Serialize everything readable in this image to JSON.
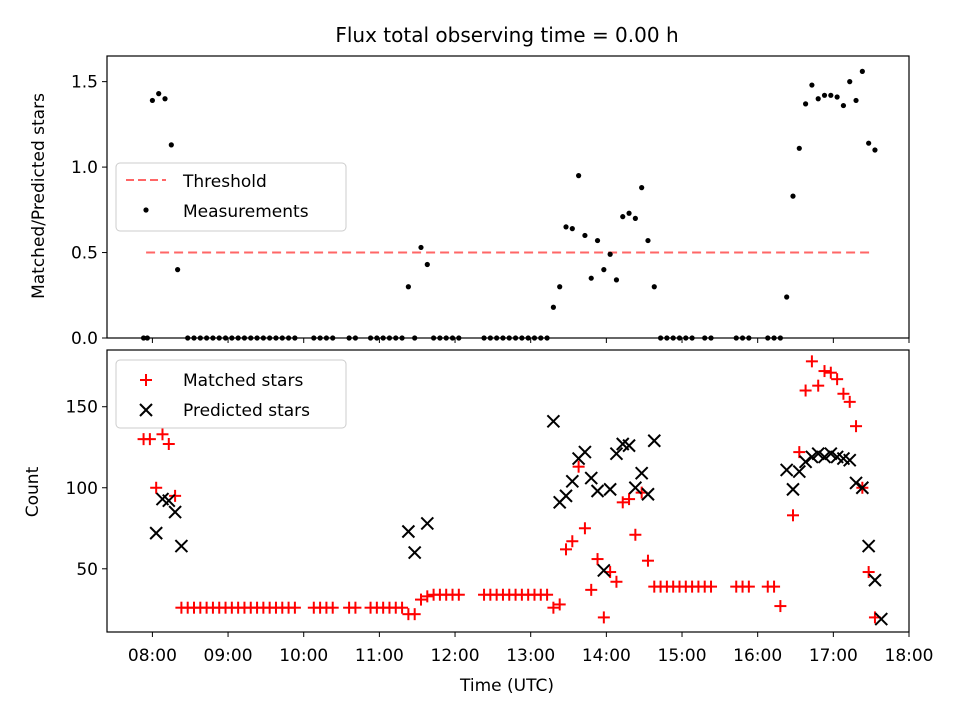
{
  "chart_data": [
    {
      "type": "scatter",
      "title": "Flux total observing time = 0.00 h",
      "xlabel": "",
      "ylabel": "Matched/Predicted stars",
      "xlim": [
        "07:24",
        "18:00"
      ],
      "ylim": [
        0,
        1.65
      ],
      "yticks": [
        0,
        0.5,
        1.0,
        1.5
      ],
      "ytick_labels": [
        "0.0",
        "0.5",
        "1.0",
        "1.5"
      ],
      "legend_position": "center-left",
      "threshold": {
        "name": "Threshold",
        "y": 0.5,
        "x_range": [
          "07:55",
          "17:32"
        ],
        "color": "#ff6666",
        "style": "dashed"
      },
      "series": [
        {
          "name": "Measurements",
          "color": "#000000",
          "marker": "dot",
          "points": [
            [
              "07:53",
              0
            ],
            [
              "07:56",
              0
            ],
            [
              "08:00",
              1.39
            ],
            [
              "08:05",
              1.43
            ],
            [
              "08:10",
              1.4
            ],
            [
              "08:15",
              1.13
            ],
            [
              "08:20",
              0.4
            ],
            [
              "08:28",
              0
            ],
            [
              "08:33",
              0
            ],
            [
              "08:38",
              0
            ],
            [
              "08:43",
              0
            ],
            [
              "08:48",
              0
            ],
            [
              "08:53",
              0
            ],
            [
              "08:58",
              0
            ],
            [
              "09:03",
              0
            ],
            [
              "09:08",
              0
            ],
            [
              "09:13",
              0
            ],
            [
              "09:18",
              0
            ],
            [
              "09:23",
              0
            ],
            [
              "09:28",
              0
            ],
            [
              "09:33",
              0
            ],
            [
              "09:38",
              0
            ],
            [
              "09:43",
              0
            ],
            [
              "09:48",
              0
            ],
            [
              "09:53",
              0
            ],
            [
              "10:08",
              0
            ],
            [
              "10:13",
              0
            ],
            [
              "10:18",
              0
            ],
            [
              "10:23",
              0
            ],
            [
              "10:36",
              0
            ],
            [
              "10:41",
              0
            ],
            [
              "10:53",
              0
            ],
            [
              "10:58",
              0
            ],
            [
              "11:03",
              0
            ],
            [
              "11:08",
              0
            ],
            [
              "11:13",
              0
            ],
            [
              "11:18",
              0
            ],
            [
              "11:23",
              0.3
            ],
            [
              "11:28",
              0
            ],
            [
              "11:33",
              0.53
            ],
            [
              "11:38",
              0.43
            ],
            [
              "11:43",
              0
            ],
            [
              "11:48",
              0
            ],
            [
              "11:53",
              0
            ],
            [
              "11:58",
              0
            ],
            [
              "12:03",
              0
            ],
            [
              "12:23",
              0
            ],
            [
              "12:28",
              0
            ],
            [
              "12:33",
              0
            ],
            [
              "12:38",
              0
            ],
            [
              "12:43",
              0
            ],
            [
              "12:48",
              0
            ],
            [
              "12:53",
              0
            ],
            [
              "12:58",
              0
            ],
            [
              "13:03",
              0
            ],
            [
              "13:08",
              0
            ],
            [
              "13:13",
              0
            ],
            [
              "13:18",
              0.18
            ],
            [
              "13:23",
              0.3
            ],
            [
              "13:28",
              0.65
            ],
            [
              "13:33",
              0.64
            ],
            [
              "13:38",
              0.95
            ],
            [
              "13:43",
              0.6
            ],
            [
              "13:48",
              0.35
            ],
            [
              "13:53",
              0.57
            ],
            [
              "13:58",
              0.4
            ],
            [
              "14:03",
              0.49
            ],
            [
              "14:08",
              0.34
            ],
            [
              "14:13",
              0.71
            ],
            [
              "14:18",
              0.73
            ],
            [
              "14:23",
              0.7
            ],
            [
              "14:28",
              0.88
            ],
            [
              "14:33",
              0.57
            ],
            [
              "14:38",
              0.3
            ],
            [
              "14:43",
              0
            ],
            [
              "14:48",
              0
            ],
            [
              "14:53",
              0
            ],
            [
              "14:58",
              0
            ],
            [
              "15:03",
              0
            ],
            [
              "15:08",
              0
            ],
            [
              "15:18",
              0
            ],
            [
              "15:23",
              0
            ],
            [
              "15:43",
              0
            ],
            [
              "15:48",
              0
            ],
            [
              "15:53",
              0
            ],
            [
              "16:08",
              0
            ],
            [
              "16:13",
              0
            ],
            [
              "16:18",
              0
            ],
            [
              "16:23",
              0.24
            ],
            [
              "16:28",
              0.83
            ],
            [
              "16:33",
              1.11
            ],
            [
              "16:38",
              1.37
            ],
            [
              "16:43",
              1.48
            ],
            [
              "16:48",
              1.4
            ],
            [
              "16:53",
              1.42
            ],
            [
              "16:58",
              1.42
            ],
            [
              "17:03",
              1.41
            ],
            [
              "17:08",
              1.36
            ],
            [
              "17:13",
              1.5
            ],
            [
              "17:18",
              1.39
            ],
            [
              "17:23",
              1.56
            ],
            [
              "17:28",
              1.14
            ],
            [
              "17:33",
              1.1
            ]
          ]
        }
      ]
    },
    {
      "type": "scatter",
      "title": "",
      "xlabel": "Time (UTC)",
      "ylabel": "Count",
      "xlim": [
        "07:24",
        "18:00"
      ],
      "ylim": [
        11,
        185
      ],
      "xticks": [
        "08:00",
        "09:00",
        "10:00",
        "11:00",
        "12:00",
        "13:00",
        "14:00",
        "15:00",
        "16:00",
        "17:00",
        "18:00"
      ],
      "yticks": [
        50,
        100,
        150
      ],
      "ytick_labels": [
        "50",
        "100",
        "150"
      ],
      "legend_position": "top-left",
      "series": [
        {
          "name": "Matched stars",
          "color": "#ff0000",
          "marker": "plus",
          "points": [
            [
              "07:53",
              130
            ],
            [
              "07:58",
              130
            ],
            [
              "08:03",
              100
            ],
            [
              "08:08",
              133
            ],
            [
              "08:13",
              127
            ],
            [
              "08:18",
              95
            ],
            [
              "08:23",
              26
            ],
            [
              "08:28",
              26
            ],
            [
              "08:33",
              26
            ],
            [
              "08:38",
              26
            ],
            [
              "08:43",
              26
            ],
            [
              "08:48",
              26
            ],
            [
              "08:53",
              26
            ],
            [
              "08:58",
              26
            ],
            [
              "09:03",
              26
            ],
            [
              "09:08",
              26
            ],
            [
              "09:13",
              26
            ],
            [
              "09:18",
              26
            ],
            [
              "09:23",
              26
            ],
            [
              "09:28",
              26
            ],
            [
              "09:33",
              26
            ],
            [
              "09:38",
              26
            ],
            [
              "09:43",
              26
            ],
            [
              "09:48",
              26
            ],
            [
              "09:53",
              26
            ],
            [
              "10:08",
              26
            ],
            [
              "10:13",
              26
            ],
            [
              "10:18",
              26
            ],
            [
              "10:23",
              26
            ],
            [
              "10:36",
              26
            ],
            [
              "10:41",
              26
            ],
            [
              "10:53",
              26
            ],
            [
              "10:58",
              26
            ],
            [
              "11:03",
              26
            ],
            [
              "11:08",
              26
            ],
            [
              "11:13",
              26
            ],
            [
              "11:18",
              26
            ],
            [
              "11:23",
              22
            ],
            [
              "11:28",
              22
            ],
            [
              "11:33",
              31
            ],
            [
              "11:38",
              33
            ],
            [
              "11:43",
              34
            ],
            [
              "11:48",
              34
            ],
            [
              "11:53",
              34
            ],
            [
              "11:58",
              34
            ],
            [
              "12:03",
              34
            ],
            [
              "12:23",
              34
            ],
            [
              "12:28",
              34
            ],
            [
              "12:33",
              34
            ],
            [
              "12:38",
              34
            ],
            [
              "12:43",
              34
            ],
            [
              "12:48",
              34
            ],
            [
              "12:53",
              34
            ],
            [
              "12:58",
              34
            ],
            [
              "13:03",
              34
            ],
            [
              "13:08",
              34
            ],
            [
              "13:13",
              34
            ],
            [
              "13:18",
              26
            ],
            [
              "13:23",
              28
            ],
            [
              "13:28",
              62
            ],
            [
              "13:33",
              67
            ],
            [
              "13:38",
              113
            ],
            [
              "13:43",
              75
            ],
            [
              "13:48",
              37
            ],
            [
              "13:53",
              56
            ],
            [
              "13:58",
              20
            ],
            [
              "14:03",
              48
            ],
            [
              "14:08",
              42
            ],
            [
              "14:13",
              91
            ],
            [
              "14:18",
              93
            ],
            [
              "14:23",
              71
            ],
            [
              "14:28",
              97
            ],
            [
              "14:33",
              55
            ],
            [
              "14:38",
              39
            ],
            [
              "14:43",
              39
            ],
            [
              "14:48",
              39
            ],
            [
              "14:53",
              39
            ],
            [
              "14:58",
              39
            ],
            [
              "15:03",
              39
            ],
            [
              "15:08",
              39
            ],
            [
              "15:13",
              39
            ],
            [
              "15:18",
              39
            ],
            [
              "15:23",
              39
            ],
            [
              "15:43",
              39
            ],
            [
              "15:48",
              39
            ],
            [
              "15:53",
              39
            ],
            [
              "16:08",
              39
            ],
            [
              "16:13",
              39
            ],
            [
              "16:18",
              27
            ],
            [
              "16:28",
              83
            ],
            [
              "16:33",
              122
            ],
            [
              "16:38",
              160
            ],
            [
              "16:43",
              178
            ],
            [
              "16:48",
              163
            ],
            [
              "16:53",
              172
            ],
            [
              "16:58",
              171
            ],
            [
              "17:03",
              167
            ],
            [
              "17:08",
              158
            ],
            [
              "17:13",
              153
            ],
            [
              "17:18",
              138
            ],
            [
              "17:23",
              100
            ],
            [
              "17:28",
              48
            ],
            [
              "17:33",
              20
            ]
          ]
        },
        {
          "name": "Predicted stars",
          "color": "#000000",
          "marker": "x",
          "points": [
            [
              "08:03",
              72
            ],
            [
              "08:08",
              93
            ],
            [
              "08:13",
              92
            ],
            [
              "08:18",
              85
            ],
            [
              "08:23",
              64
            ],
            [
              "11:23",
              73
            ],
            [
              "11:28",
              60
            ],
            [
              "11:38",
              78
            ],
            [
              "13:18",
              141
            ],
            [
              "13:23",
              91
            ],
            [
              "13:28",
              95
            ],
            [
              "13:33",
              104
            ],
            [
              "13:38",
              118
            ],
            [
              "13:43",
              122
            ],
            [
              "13:48",
              106
            ],
            [
              "13:53",
              98
            ],
            [
              "13:58",
              49
            ],
            [
              "14:03",
              99
            ],
            [
              "14:08",
              121
            ],
            [
              "14:13",
              127
            ],
            [
              "14:18",
              126
            ],
            [
              "14:23",
              100
            ],
            [
              "14:28",
              109
            ],
            [
              "14:33",
              96
            ],
            [
              "14:38",
              129
            ],
            [
              "16:23",
              111
            ],
            [
              "16:28",
              99
            ],
            [
              "16:33",
              110
            ],
            [
              "16:38",
              116
            ],
            [
              "16:43",
              119
            ],
            [
              "16:48",
              121
            ],
            [
              "16:53",
              119
            ],
            [
              "16:58",
              121
            ],
            [
              "17:03",
              119
            ],
            [
              "17:08",
              118
            ],
            [
              "17:13",
              117
            ],
            [
              "17:18",
              103
            ],
            [
              "17:23",
              100
            ],
            [
              "17:28",
              64
            ],
            [
              "17:33",
              43
            ],
            [
              "17:38",
              19
            ]
          ]
        }
      ]
    }
  ]
}
